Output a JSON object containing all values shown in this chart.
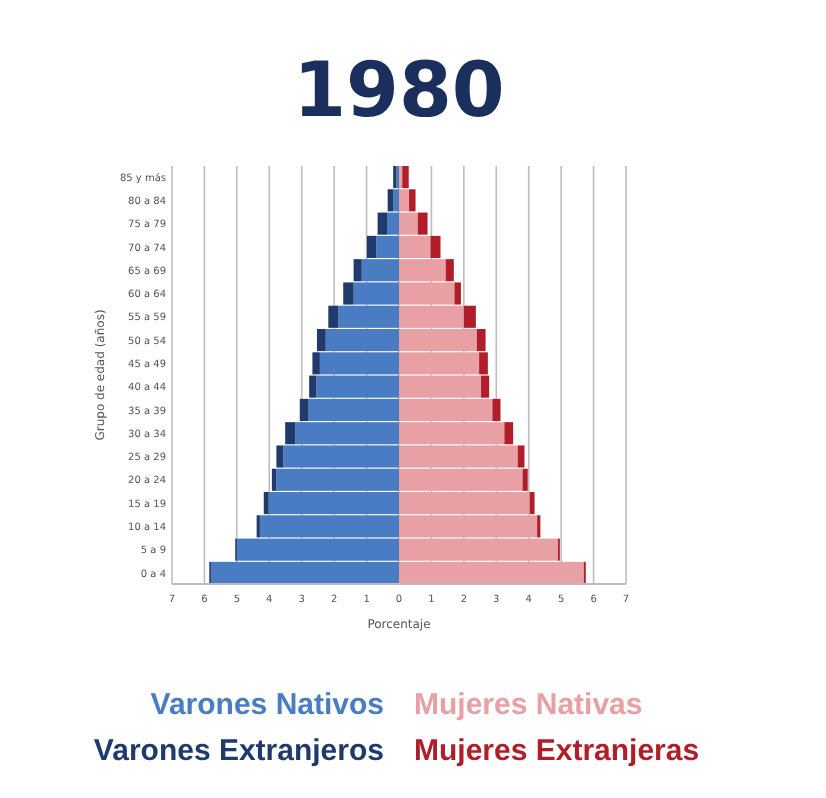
{
  "chart_data": {
    "type": "bar",
    "orientation": "horizontal",
    "stacked": true,
    "title": "1980",
    "xlabel": "Porcentaje",
    "ylabel": "Grupo de edad (años)",
    "categories": [
      "85 y más",
      "80 a 84",
      "75 a 79",
      "70 a 74",
      "65 a 69",
      "60 a 64",
      "55 a 59",
      "50 a 54",
      "45 a 49",
      "40 a 44",
      "35 a 39",
      "30 a 34",
      "25 a 29",
      "20 a 24",
      "15 a 19",
      "10 a 14",
      "5 a 9",
      "0 a 4"
    ],
    "series": [
      {
        "name": "Varones Nativos",
        "color": "#4a7cc4",
        "values": [
          -0.08,
          -0.17,
          -0.37,
          -0.7,
          -1.15,
          -1.4,
          -1.87,
          -2.26,
          -2.44,
          -2.55,
          -2.79,
          -3.2,
          -3.57,
          -3.78,
          -4.02,
          -4.29,
          -5.0,
          -5.8
        ]
      },
      {
        "name": "Varones Extranjeros",
        "color": "#1f3a6b",
        "values": [
          -0.1,
          -0.18,
          -0.29,
          -0.29,
          -0.25,
          -0.32,
          -0.31,
          -0.27,
          -0.23,
          -0.22,
          -0.27,
          -0.31,
          -0.21,
          -0.14,
          -0.15,
          -0.1,
          -0.05,
          -0.05
        ]
      },
      {
        "name": "Mujeres Nativas",
        "color": "#e8a0a4",
        "values": [
          0.1,
          0.31,
          0.58,
          0.97,
          1.44,
          1.71,
          2.0,
          2.4,
          2.47,
          2.53,
          2.88,
          3.25,
          3.66,
          3.81,
          4.03,
          4.26,
          4.9,
          5.7
        ]
      },
      {
        "name": "Mujeres Extranjeras",
        "color": "#b01e2a",
        "values": [
          0.2,
          0.2,
          0.3,
          0.31,
          0.25,
          0.2,
          0.37,
          0.27,
          0.27,
          0.25,
          0.25,
          0.27,
          0.21,
          0.16,
          0.15,
          0.1,
          0.06,
          0.06
        ]
      }
    ],
    "xlim": [
      -7,
      7
    ],
    "xticks": [
      {
        "value": -7,
        "label": "7"
      },
      {
        "value": -6,
        "label": "6"
      },
      {
        "value": -5,
        "label": "5"
      },
      {
        "value": -4,
        "label": "4"
      },
      {
        "value": -3,
        "label": "3"
      },
      {
        "value": -2,
        "label": "2"
      },
      {
        "value": -1,
        "label": "1"
      },
      0,
      1,
      2,
      3,
      4,
      5,
      6,
      7
    ],
    "grid": "x",
    "legend": "bottom"
  }
}
